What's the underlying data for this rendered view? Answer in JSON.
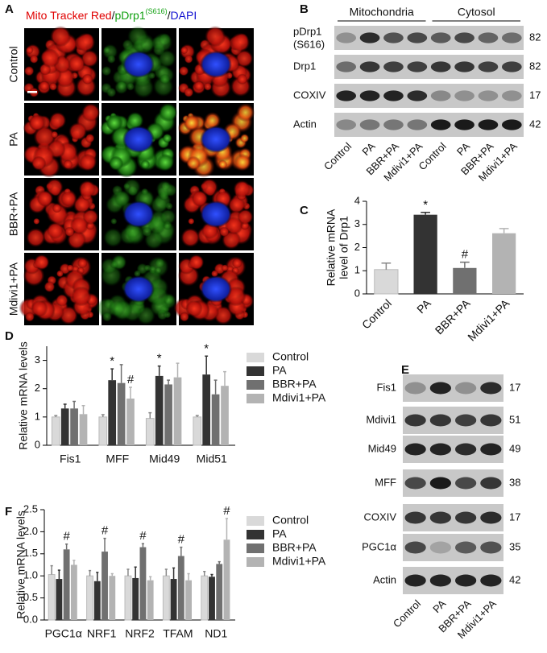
{
  "panel_a": {
    "letter": "A",
    "title_parts": [
      "Mito Tracker Red",
      "/",
      "pDrp1",
      "(S616)",
      "/",
      "DAPI"
    ],
    "rows": [
      "Control",
      "PA",
      "BBR+PA",
      "Mdivi1+PA"
    ]
  },
  "panel_b": {
    "letter": "B",
    "groups": [
      "Mitochondria",
      "Cytosol"
    ],
    "blots": [
      {
        "label": "pDrp1",
        "label2": "(S616)",
        "size": 82
      },
      {
        "label": "Drp1",
        "size": 82
      },
      {
        "label": "COXIV",
        "size": 17
      },
      {
        "label": "Actin",
        "size": 42
      }
    ],
    "lanes": [
      "Control",
      "PA",
      "BBR+PA",
      "Mdivi1+PA",
      "Control",
      "PA",
      "BBR+PA",
      "Mdivi1+PA"
    ]
  },
  "panel_e": {
    "letter": "E",
    "blots": [
      {
        "label": "Fis1",
        "size": 17
      },
      {
        "label": "Mdivi1",
        "size": 51
      },
      {
        "label": "Mid49",
        "size": 49
      },
      {
        "label": "MFF",
        "size": 38
      },
      {
        "label": "COXIV",
        "size": 17
      },
      {
        "label": "PGC1α",
        "size": 35
      },
      {
        "label": "Actin",
        "size": 42
      }
    ],
    "lanes": [
      "Control",
      "PA",
      "BBR+PA",
      "Mdivi1+PA"
    ]
  },
  "chart_data": [
    {
      "type": "bar",
      "panel_label": "C",
      "ylabel": [
        "Relative mRNA",
        "level of Drp1"
      ],
      "categories": [
        "Control",
        "PA",
        "BBR+PA",
        "Mdivi1+PA"
      ],
      "values": [
        1.05,
        3.42,
        1.12,
        2.62
      ],
      "errors": [
        0.28,
        0.1,
        0.25,
        0.2
      ],
      "annotations": [
        null,
        "*",
        "#",
        null
      ],
      "colors": [
        "#d9d9d9",
        "#333333",
        "#707070",
        "#b3b3b3"
      ],
      "ylim": [
        0,
        4
      ],
      "yticks": [
        0,
        1,
        2,
        3,
        4
      ]
    },
    {
      "type": "grouped_bar",
      "panel_label": "D",
      "ylabel": [
        "Relative mRNA levels"
      ],
      "categories": [
        "Fis1",
        "MFF",
        "Mid49",
        "Mid51"
      ],
      "series": [
        {
          "name": "Control",
          "color": "#d9d9d9",
          "values": [
            1.0,
            1.0,
            0.95,
            1.0
          ],
          "errors": [
            0.05,
            0.08,
            0.2,
            0.05
          ],
          "annotations": [
            null,
            null,
            null,
            null
          ]
        },
        {
          "name": "PA",
          "color": "#333333",
          "values": [
            1.3,
            2.3,
            2.45,
            2.5
          ],
          "errors": [
            0.15,
            0.4,
            0.35,
            0.65
          ],
          "annotations": [
            null,
            "*",
            "*",
            "*"
          ]
        },
        {
          "name": "BBR+PA",
          "color": "#707070",
          "values": [
            1.3,
            2.2,
            2.15,
            1.8
          ],
          "errors": [
            0.25,
            0.65,
            0.15,
            0.5
          ],
          "annotations": [
            null,
            null,
            null,
            null
          ]
        },
        {
          "name": "Mdivi1+PA",
          "color": "#b3b3b3",
          "values": [
            1.1,
            1.65,
            2.4,
            2.1
          ],
          "errors": [
            0.3,
            0.4,
            0.5,
            0.5
          ],
          "annotations": [
            null,
            "#",
            null,
            null
          ]
        }
      ],
      "ylim": [
        0,
        3.5
      ],
      "yticks": [
        0,
        1,
        2,
        3
      ],
      "legend": "right"
    },
    {
      "type": "grouped_bar",
      "panel_label": "F",
      "ylabel": [
        "Relative mRNA levels"
      ],
      "categories": [
        "PGC1α",
        "NRF1",
        "NRF2",
        "TFAM",
        "ND1"
      ],
      "series": [
        {
          "name": "Control",
          "color": "#d9d9d9",
          "values": [
            1.03,
            1.0,
            1.0,
            1.0,
            1.0
          ],
          "errors": [
            0.2,
            0.12,
            0.15,
            0.15,
            0.1
          ],
          "annotations": [
            null,
            null,
            null,
            null,
            null
          ]
        },
        {
          "name": "PA",
          "color": "#333333",
          "values": [
            0.93,
            0.88,
            0.95,
            0.93,
            0.98
          ],
          "errors": [
            0.2,
            0.2,
            0.25,
            0.25,
            0.05
          ],
          "annotations": [
            null,
            null,
            null,
            null,
            null
          ]
        },
        {
          "name": "BBR+PA",
          "color": "#707070",
          "values": [
            1.6,
            1.55,
            1.65,
            1.45,
            1.27
          ],
          "errors": [
            0.12,
            0.3,
            0.08,
            0.2,
            0.05
          ],
          "annotations": [
            "#",
            "#",
            "#",
            "#",
            null
          ]
        },
        {
          "name": "Mdivi1+PA",
          "color": "#b3b3b3",
          "values": [
            1.25,
            1.0,
            0.9,
            0.9,
            1.82
          ],
          "errors": [
            0.1,
            0.05,
            0.08,
            0.15,
            0.48
          ],
          "annotations": [
            null,
            null,
            null,
            null,
            "#"
          ]
        }
      ],
      "ylim": [
        0,
        2.5
      ],
      "yticks": [
        {
          "value": 0,
          "label": "0.0"
        },
        {
          "value": 0.5,
          "label": "0.5"
        },
        {
          "value": 1,
          "label": "1.0"
        },
        {
          "value": 1.5,
          "label": "1.5"
        },
        {
          "value": 2,
          "label": "2.0"
        },
        {
          "value": 2.5,
          "label": "2.5"
        }
      ],
      "legend": "right"
    }
  ]
}
